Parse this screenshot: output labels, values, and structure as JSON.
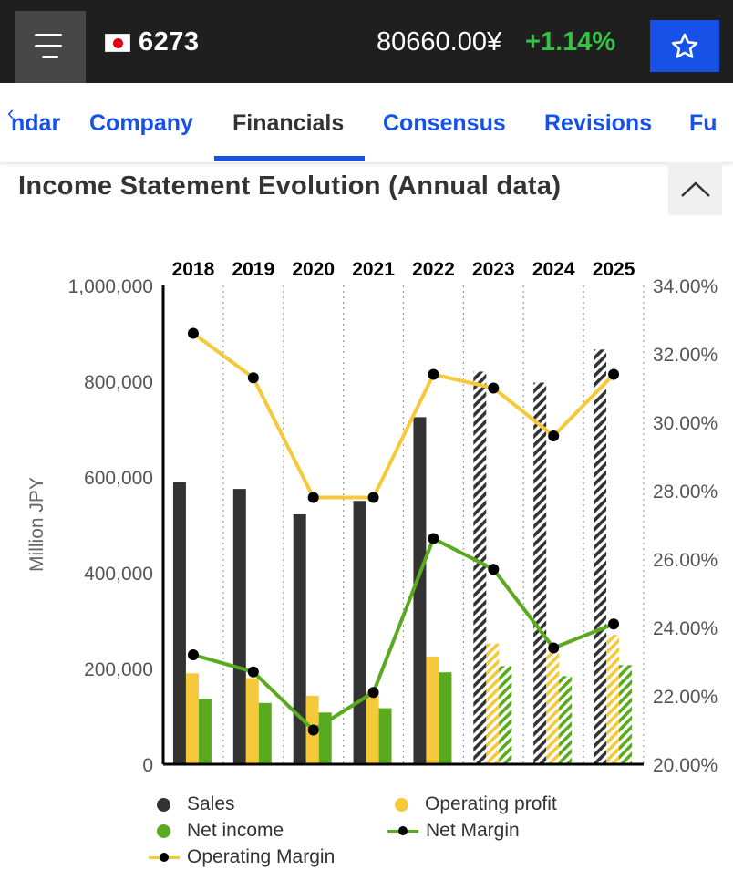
{
  "header": {
    "ticker": "6273",
    "price": "80660.00¥",
    "change": "+1.14%",
    "colors": {
      "bar": "#1f1f1f",
      "accent": "#1652e8",
      "positive": "#33c241",
      "flag_red": "#e20018"
    },
    "icons": {
      "menu": "hamburger-menu-icon",
      "flag": "japan-flag-icon",
      "star": "star-outline-icon"
    }
  },
  "tabs": {
    "items": [
      {
        "label": "ndar",
        "active": false
      },
      {
        "label": "Company",
        "active": false
      },
      {
        "label": "Financials",
        "active": true
      },
      {
        "label": "Consensus",
        "active": false
      },
      {
        "label": "Revisions",
        "active": false
      },
      {
        "label": "Fu",
        "active": false
      }
    ],
    "back_icon": "chevron-left-icon"
  },
  "section": {
    "title": "Income Statement Evolution (Annual data)",
    "collapse_icon": "chevron-up-icon"
  },
  "chart_data": {
    "type": "bar",
    "categories": [
      "2018",
      "2019",
      "2020",
      "2021",
      "2022",
      "2023",
      "2024",
      "2025"
    ],
    "estimate_from_index": 5,
    "ylabel": "Million JPY",
    "ylim": [
      0,
      1000000
    ],
    "yticks": [
      "1,000,000",
      "800,000",
      "600,000",
      "400,000",
      "200,000",
      "0"
    ],
    "y2lim": [
      20,
      34
    ],
    "y2ticks": [
      "34.00%",
      "32.00%",
      "30.00%",
      "28.00%",
      "26.00%",
      "24.00%",
      "22.00%",
      "20.00%"
    ],
    "grid": "vertical dotted",
    "legend_position": "bottom",
    "series": [
      {
        "name": "Sales",
        "kind": "bar",
        "axis": "left",
        "color": "#333333",
        "values": [
          590000,
          575000,
          522000,
          550000,
          725000,
          820000,
          797000,
          866000
        ]
      },
      {
        "name": "Operating profit",
        "kind": "bar",
        "axis": "left",
        "color": "#f5c93a",
        "values": [
          190000,
          180000,
          143000,
          150000,
          225000,
          252000,
          232000,
          270000
        ]
      },
      {
        "name": "Net income",
        "kind": "bar",
        "axis": "left",
        "color": "#5aaa20",
        "values": [
          136000,
          128000,
          108000,
          117000,
          192000,
          205000,
          184000,
          207000
        ]
      },
      {
        "name": "Net Margin",
        "kind": "line",
        "axis": "right",
        "color": "#5aaa20",
        "values": [
          23.2,
          22.7,
          21.0,
          22.1,
          26.6,
          25.7,
          23.4,
          24.1
        ]
      },
      {
        "name": "Operating Margin",
        "kind": "line",
        "axis": "right",
        "color": "#f5c93a",
        "values": [
          32.6,
          31.3,
          27.8,
          27.8,
          31.4,
          31.0,
          29.6,
          31.4
        ]
      }
    ]
  }
}
